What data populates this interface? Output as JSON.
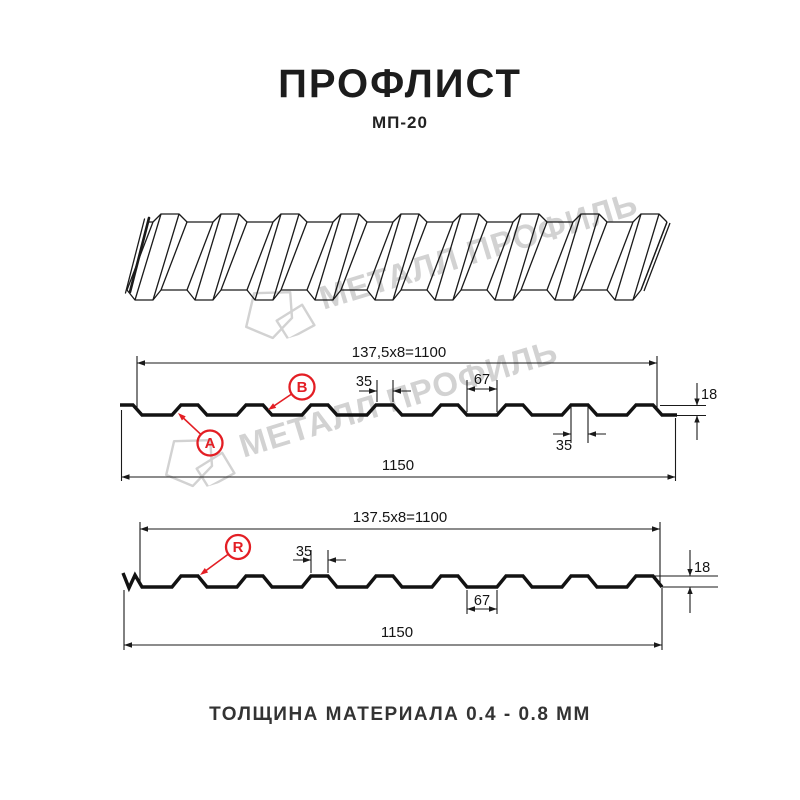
{
  "header": {
    "title": "ПРОФЛИСТ",
    "subtitle": "МП-20"
  },
  "watermark": {
    "text": "МЕТАЛЛ ПРОФИЛЬ"
  },
  "footer": {
    "text": "ТОЛЩИНА МАТЕРИАЛА 0.4 - 0.8 ММ"
  },
  "colors": {
    "accent_red": "#e31e24",
    "line_black": "#1a1a1a",
    "watermark_gray": "#d2d2d2"
  },
  "diagram1": {
    "pitch_dim": "137,5x8=1100",
    "crest_top_dim": "35",
    "valley_dim": "67",
    "height_dim": "18",
    "crest_bottom_dim": "35",
    "total_width_dim": "1150",
    "label_a": "A",
    "label_b": "B"
  },
  "diagram2": {
    "pitch_dim": "137.5x8=1100",
    "crest_top_dim": "35",
    "valley_dim": "67",
    "height_dim": "18",
    "total_width_dim": "1150",
    "label_r": "R"
  }
}
